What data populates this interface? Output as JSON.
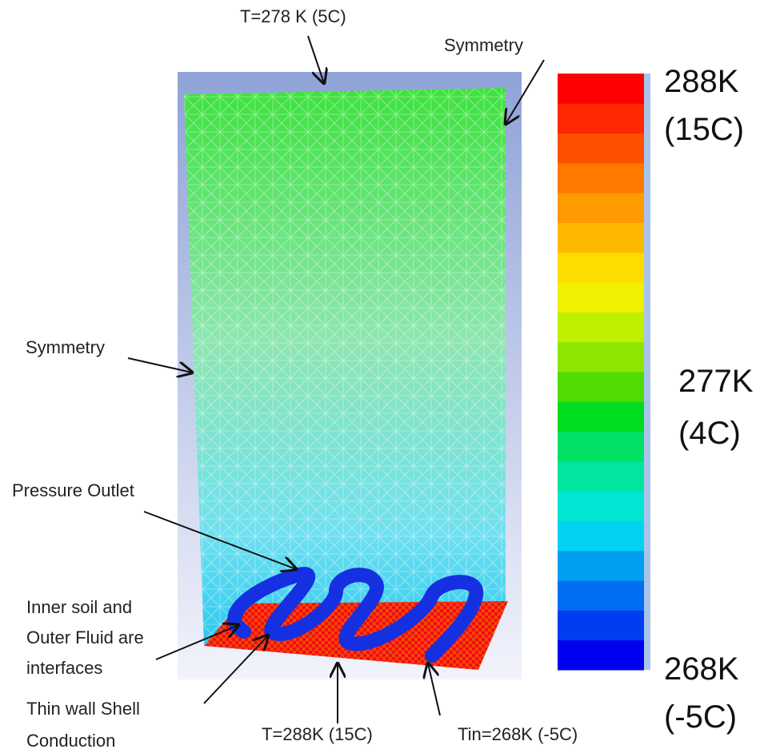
{
  "annotations": {
    "top_temperature": "T=278 K (5C)",
    "symmetry_right": "Symmetry",
    "symmetry_left": "Symmetry",
    "pressure_outlet": "Pressure Outlet",
    "interfaces": [
      "Inner soil  and",
      "Outer Fluid are",
      "interfaces"
    ],
    "shell_conduction": [
      "Thin wall Shell",
      "Conduction"
    ],
    "bottom_temperature": "T=288K (15C)",
    "inlet_temperature": "Tin=268K (-5C)"
  },
  "colorbar": {
    "max": [
      "288K",
      "(15C)"
    ],
    "mid": [
      "277K",
      "(4C)"
    ],
    "min": [
      "268K",
      "(-5C)"
    ],
    "colors": [
      "#ff0000",
      "#ff2800",
      "#ff5000",
      "#ff7800",
      "#ff9a00",
      "#ffb800",
      "#ffdc00",
      "#f0f000",
      "#bef000",
      "#8ce600",
      "#50dc00",
      "#00dc1e",
      "#00e064",
      "#00e6a0",
      "#00e6d2",
      "#00d2f0",
      "#00a0f0",
      "#006ef0",
      "#003cf0",
      "#0000f0"
    ]
  }
}
